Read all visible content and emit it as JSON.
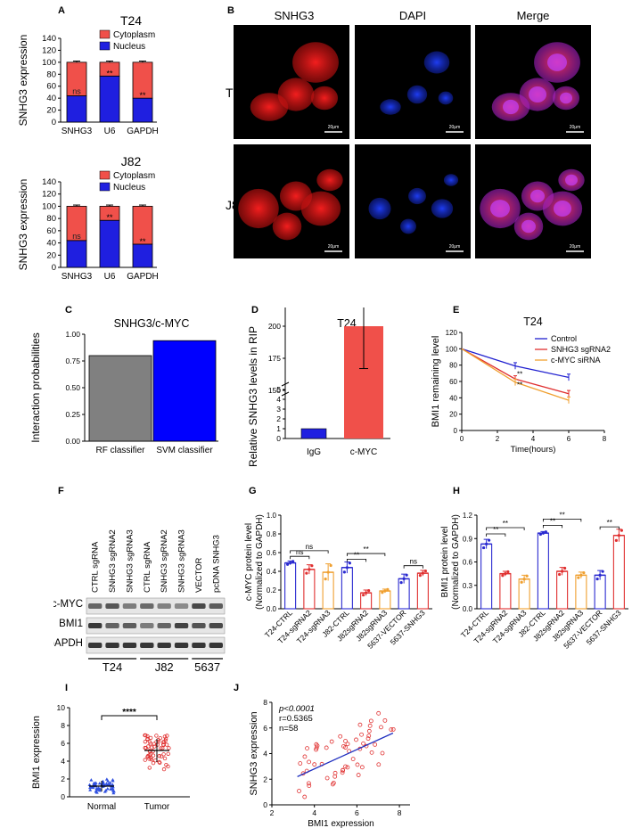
{
  "panels": {
    "A": "A",
    "B": "B",
    "C": "C",
    "D": "D",
    "E": "E",
    "F": "F",
    "G": "G",
    "H": "H",
    "I": "I",
    "J": "J"
  },
  "chart_data": [
    {
      "id": "A_T24",
      "type": "bar",
      "stacked": true,
      "title": "T24",
      "ylabel": "SNHG3 expression",
      "ylim": [
        0,
        140
      ],
      "yticks": [
        "0",
        "20",
        "40",
        "60",
        "80",
        "100",
        "120",
        "140"
      ],
      "categories": [
        "SNHG3",
        "U6",
        "GAPDH"
      ],
      "series": [
        {
          "name": "Nucleus",
          "color": "#1f1fe0",
          "values": [
            44,
            77,
            40
          ]
        },
        {
          "name": "Cytoplasm",
          "color": "#f0504a",
          "values": [
            56,
            23,
            60
          ]
        }
      ],
      "annotations": [
        "ns",
        "**",
        "**"
      ]
    },
    {
      "id": "A_J82",
      "type": "bar",
      "stacked": true,
      "title": "J82",
      "ylabel": "SNHG3 expression",
      "ylim": [
        0,
        140
      ],
      "yticks": [
        "0",
        "20",
        "40",
        "60",
        "80",
        "100",
        "120",
        "140"
      ],
      "categories": [
        "SNHG3",
        "U6",
        "GAPDH"
      ],
      "series": [
        {
          "name": "Nucleus",
          "color": "#1f1fe0",
          "values": [
            44,
            77,
            38
          ]
        },
        {
          "name": "Cytoplasm",
          "color": "#f0504a",
          "values": [
            56,
            23,
            62
          ]
        }
      ],
      "annotations": [
        "ns",
        "**",
        "**"
      ]
    },
    {
      "id": "C",
      "type": "bar",
      "title": "SNHG3/c-MYC",
      "ylabel": "Interaction probabilities",
      "ylim": [
        0,
        1.0
      ],
      "yticks": [
        "0.00",
        "0.25",
        "0.50",
        "0.75",
        "1.00"
      ],
      "categories": [
        "RF classifier",
        "SVM classifier"
      ],
      "values": [
        0.8,
        0.94
      ],
      "colors": [
        "#808080",
        "#0000ff"
      ]
    },
    {
      "id": "D",
      "type": "bar",
      "title": "T24",
      "ylabel": "Relative SNHG3 levels in RIP",
      "yticks_low": [
        "0",
        "1",
        "2",
        "3",
        "4",
        "5"
      ],
      "yticks_high": [
        "150",
        "175",
        "200",
        "225",
        "250"
      ],
      "categories": [
        "IgG",
        "c-MYC"
      ],
      "values": [
        1,
        200
      ],
      "errors": [
        0,
        33
      ],
      "colors": [
        "#1f1fe0",
        "#f0504a"
      ],
      "annotation": "****"
    },
    {
      "id": "E",
      "type": "line",
      "title": "T24",
      "ylabel": "BMI1 remaining level",
      "xlabel": "Time(hours)",
      "xlim": [
        0,
        8
      ],
      "ylim": [
        0,
        120
      ],
      "xticks": [
        "0",
        "2",
        "4",
        "6",
        "8"
      ],
      "yticks": [
        "0",
        "20",
        "40",
        "60",
        "80",
        "100",
        "120"
      ],
      "x": [
        0,
        3,
        6
      ],
      "series": [
        {
          "name": "Control",
          "color": "#2020d0",
          "values": [
            100,
            79,
            65
          ]
        },
        {
          "name": "SNHG3 sgRNA2",
          "color": "#e03030",
          "values": [
            100,
            63,
            45
          ]
        },
        {
          "name": "c-MYC siRNA",
          "color": "#f0a030",
          "values": [
            100,
            59,
            37
          ]
        }
      ],
      "annotations": [
        "**",
        "**"
      ]
    },
    {
      "id": "G",
      "type": "bar",
      "ylabel": "c-MYC protein level\n(Normalized to GAPDH)",
      "ylim": [
        0,
        1.0
      ],
      "yticks": [
        "0.0",
        "0.2",
        "0.4",
        "0.6",
        "0.8",
        "1.0"
      ],
      "categories": [
        "T24-CTRL",
        "T24-sgRNA2",
        "T24-sgRNA3",
        "J82-CTRL",
        "J82sgRNA2",
        "J82sgRNA3",
        "5637-VECTOR",
        "5637-SNHG3"
      ],
      "values": [
        0.49,
        0.42,
        0.39,
        0.44,
        0.17,
        0.19,
        0.32,
        0.38
      ],
      "errors": [
        0.02,
        0.05,
        0.09,
        0.06,
        0.03,
        0.02,
        0.05,
        0.03
      ],
      "colors": [
        "#2a2ad0",
        "#e03030",
        "#f0a030",
        "#2a2ad0",
        "#e03030",
        "#f0a030",
        "#2a2ad0",
        "#e03030"
      ],
      "sig": [
        "ns",
        "ns",
        "**",
        "**",
        "ns"
      ]
    },
    {
      "id": "H",
      "type": "bar",
      "ylabel": "BMI1 protein level\n(Normalized to GAPDH)",
      "ylim": [
        0,
        1.2
      ],
      "yticks": [
        "0.0",
        "0.3",
        "0.6",
        "0.9",
        "1.2"
      ],
      "categories": [
        "T24-CTRL",
        "T24-sgRNA2",
        "T24-sgRNA3",
        "J82-CTRL",
        "J82sgRNA2",
        "J82sgRNA3",
        "5637-VECTOR",
        "5637-SNHG3"
      ],
      "values": [
        0.83,
        0.45,
        0.38,
        0.97,
        0.48,
        0.43,
        0.43,
        0.94
      ],
      "errors": [
        0.06,
        0.03,
        0.05,
        0.02,
        0.05,
        0.04,
        0.06,
        0.08
      ],
      "colors": [
        "#2a2ad0",
        "#e03030",
        "#f0a030",
        "#2a2ad0",
        "#e03030",
        "#f0a030",
        "#2a2ad0",
        "#e03030"
      ],
      "sig": [
        "**",
        "**",
        "**",
        "**",
        "**"
      ]
    },
    {
      "id": "I",
      "type": "scatter",
      "ylabel": "BMI1 expression",
      "ylim": [
        0,
        10
      ],
      "yticks": [
        "0",
        "2",
        "4",
        "6",
        "8",
        "10"
      ],
      "categories": [
        "Normal",
        "Tumor"
      ],
      "means": [
        1.2,
        5.2
      ],
      "sd": [
        0.6,
        1.3
      ],
      "colors": [
        "#3050e0",
        "#e03030"
      ],
      "annotation": "****"
    },
    {
      "id": "J",
      "type": "scatter",
      "xlabel": "BMI1 expression",
      "ylabel": "SNHG3 expression",
      "xlim": [
        2,
        8.5
      ],
      "ylim": [
        0,
        8
      ],
      "xticks": [
        "2",
        "4",
        "6",
        "8"
      ],
      "yticks": [
        "0",
        "2",
        "4",
        "6",
        "8"
      ],
      "stats": [
        "p<0.0001",
        "r=0.5365",
        "n=58"
      ],
      "fit": [
        [
          3.2,
          2.2
        ],
        [
          7.7,
          5.6
        ]
      ]
    }
  ],
  "micrographs": {
    "columns": [
      "SNHG3",
      "DAPI",
      "Merge"
    ],
    "rows": [
      "T24",
      "J82"
    ],
    "scale_bar": "20μm"
  },
  "western": {
    "lanes": [
      "CTRL sgRNA",
      "SNHG3 sgRNA2",
      "SNHG3 sgRNA3",
      "CTRL sgRNA",
      "SNHG3 sgRNA2",
      "SNHG3 sgRNA3",
      "VECTOR",
      "pcDNA SNHG3"
    ],
    "proteins": [
      "c-MYC",
      "BMI1",
      "GAPDH"
    ],
    "groups": [
      "T24",
      "J82",
      "5637"
    ]
  }
}
